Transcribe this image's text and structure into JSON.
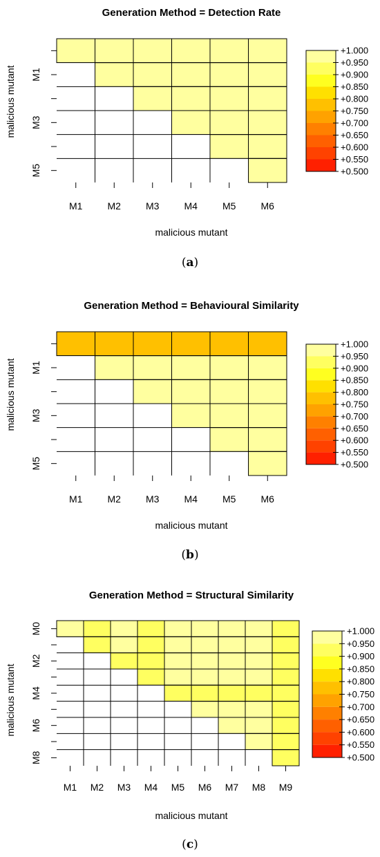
{
  "palette": [
    "#FF2000",
    "#FF4200",
    "#FF6000",
    "#FF8000",
    "#FFA200",
    "#FFC000",
    "#FFE000",
    "#FFFF20",
    "#FFFF60",
    "#FFFF9F"
  ],
  "legend_labels": [
    "+1.000",
    "+0.950",
    "+0.900",
    "+0.850",
    "+0.800",
    "+0.750",
    "+0.700",
    "+0.650",
    "+0.600",
    "+0.550",
    "+0.500"
  ],
  "chart_data": [
    {
      "type": "heatmap",
      "title": "Generation Method = Detection Rate",
      "xlabel": "malicious mutant",
      "ylabel": "malicious mutant",
      "x_categories": [
        "M1",
        "M2",
        "M3",
        "M4",
        "M5",
        "M6"
      ],
      "y_tick_labels": [
        "",
        "M1",
        "",
        "M3",
        "",
        "M5"
      ],
      "scale": [
        0.5,
        1.0
      ],
      "values": [
        [
          1.0,
          1.0,
          1.0,
          1.0,
          1.0,
          1.0
        ],
        [
          null,
          1.0,
          1.0,
          1.0,
          1.0,
          1.0
        ],
        [
          null,
          null,
          1.0,
          1.0,
          1.0,
          1.0
        ],
        [
          null,
          null,
          null,
          1.0,
          1.0,
          1.0
        ],
        [
          null,
          null,
          null,
          null,
          1.0,
          1.0
        ],
        [
          null,
          null,
          null,
          null,
          null,
          1.0
        ]
      ],
      "caption_letter": "a"
    },
    {
      "type": "heatmap",
      "title": "Generation Method = Behavioural Similarity",
      "xlabel": "malicious mutant",
      "ylabel": "malicious mutant",
      "x_categories": [
        "M1",
        "M2",
        "M3",
        "M4",
        "M5",
        "M6"
      ],
      "y_tick_labels": [
        "",
        "M1",
        "",
        "M3",
        "",
        "M5"
      ],
      "scale": [
        0.5,
        1.0
      ],
      "values": [
        [
          0.77,
          0.77,
          0.77,
          0.77,
          0.77,
          0.77
        ],
        [
          null,
          1.0,
          1.0,
          1.0,
          1.0,
          1.0
        ],
        [
          null,
          null,
          1.0,
          1.0,
          1.0,
          1.0
        ],
        [
          null,
          null,
          null,
          1.0,
          1.0,
          1.0
        ],
        [
          null,
          null,
          null,
          null,
          1.0,
          1.0
        ],
        [
          null,
          null,
          null,
          null,
          null,
          1.0
        ]
      ],
      "caption_letter": "b"
    },
    {
      "type": "heatmap",
      "title": "Generation Method = Structural Similarity",
      "xlabel": "malicious mutant",
      "ylabel": "malicious mutant",
      "x_categories": [
        "M1",
        "M2",
        "M3",
        "M4",
        "M5",
        "M6",
        "M7",
        "M8",
        "M9"
      ],
      "y_tick_labels": [
        "M0",
        "",
        "M2",
        "",
        "M4",
        "",
        "M6",
        "",
        "M8"
      ],
      "scale": [
        0.5,
        1.0
      ],
      "values": [
        [
          1.0,
          0.93,
          1.0,
          0.93,
          1.0,
          1.0,
          1.0,
          1.0,
          0.93
        ],
        [
          null,
          0.93,
          1.0,
          0.93,
          1.0,
          1.0,
          1.0,
          1.0,
          0.93
        ],
        [
          null,
          null,
          0.93,
          0.93,
          1.0,
          1.0,
          1.0,
          1.0,
          0.93
        ],
        [
          null,
          null,
          null,
          0.93,
          1.0,
          1.0,
          1.0,
          1.0,
          0.93
        ],
        [
          null,
          null,
          null,
          null,
          0.93,
          0.93,
          0.93,
          0.93,
          0.93
        ],
        [
          null,
          null,
          null,
          null,
          null,
          1.0,
          1.0,
          1.0,
          0.93
        ],
        [
          null,
          null,
          null,
          null,
          null,
          null,
          1.0,
          1.0,
          0.93
        ],
        [
          null,
          null,
          null,
          null,
          null,
          null,
          null,
          1.0,
          0.93
        ],
        [
          null,
          null,
          null,
          null,
          null,
          null,
          null,
          null,
          0.93
        ]
      ],
      "caption_letter": "c"
    }
  ]
}
